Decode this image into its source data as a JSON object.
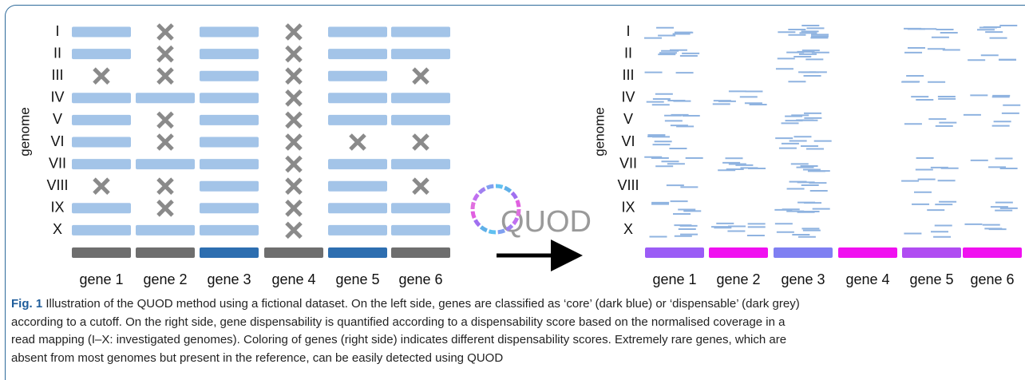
{
  "left_panel": {
    "y_label": "genome",
    "genomes": [
      "I",
      "II",
      "III",
      "IV",
      "V",
      "VI",
      "VII",
      "VIII",
      "IX",
      "X"
    ],
    "genes": [
      "gene 1",
      "gene 2",
      "gene 3",
      "gene 4",
      "gene 5",
      "gene 6"
    ],
    "gene_colors": [
      "#6e6e6e",
      "#6e6e6e",
      "#2d6eb0",
      "#6e6e6e",
      "#2d6eb0",
      "#6e6e6e"
    ]
  },
  "right_panel": {
    "y_label": "genome",
    "genomes": [
      "I",
      "II",
      "III",
      "IV",
      "V",
      "VI",
      "VII",
      "VIII",
      "IX",
      "X"
    ],
    "genes": [
      "gene 1",
      "gene 2",
      "gene 3",
      "gene 4",
      "gene 5",
      "gene 6"
    ],
    "gene_colors": [
      "#9b5cf6",
      "#f010f0",
      "#7f7ff2",
      "#f010f0",
      "#b04cf2",
      "#f010f0"
    ]
  },
  "logo": "QUOD",
  "caption": {
    "label": "Fig. 1",
    "lines": [
      " Illustration of the QUOD method using a fictional dataset. On the left side, genes are classified as ‘core’ (dark blue) or ‘dispensable’ (dark grey)",
      "according to a cutoff. On the right side, gene dispensability is quantified according to a dispensability score based on the normalised coverage in a",
      "read mapping (I–X: investigated genomes). Coloring of genes (right side) indicates different dispensability scores. Extremely rare genes, which are",
      "absent from most genomes but present in the reference, can be easily detected using QUOD"
    ]
  }
}
